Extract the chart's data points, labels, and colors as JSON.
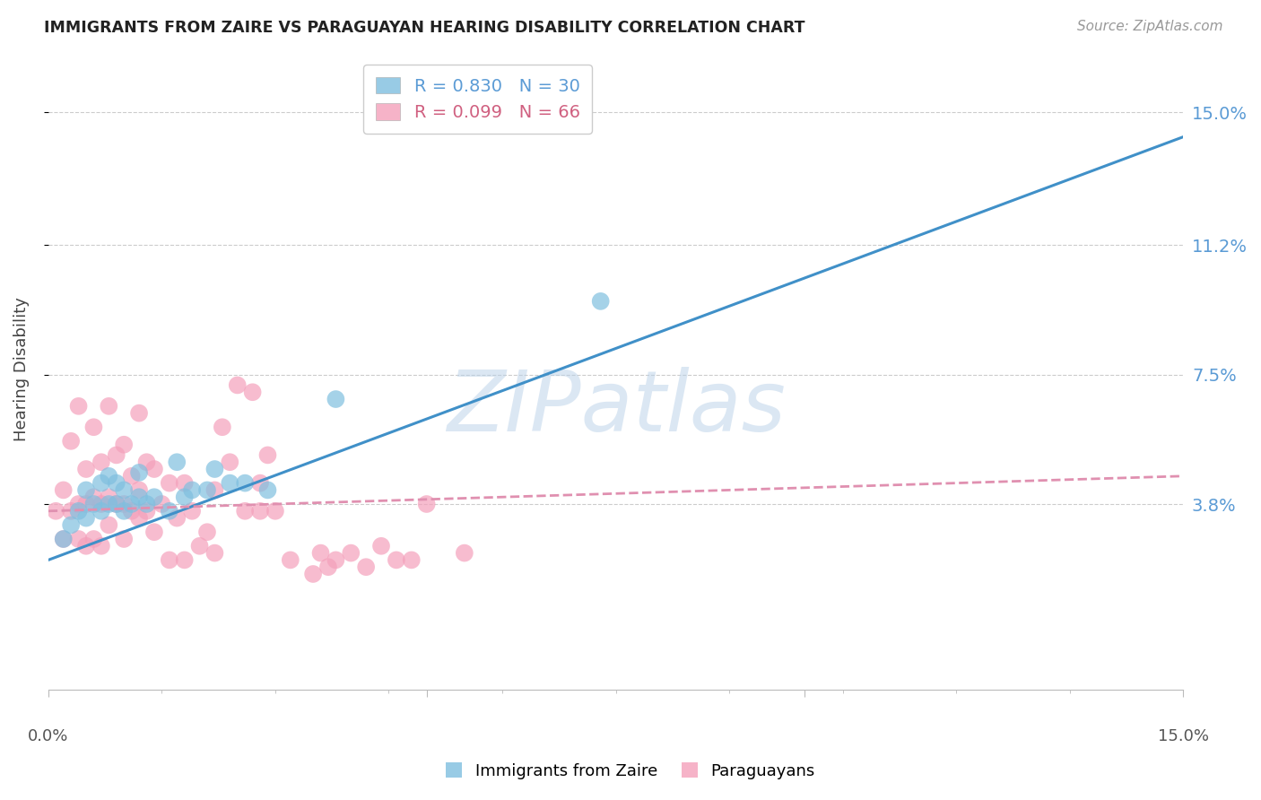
{
  "title": "IMMIGRANTS FROM ZAIRE VS PARAGUAYAN HEARING DISABILITY CORRELATION CHART",
  "source": "Source: ZipAtlas.com",
  "ylabel": "Hearing Disability",
  "ytick_labels": [
    "15.0%",
    "11.2%",
    "7.5%",
    "3.8%"
  ],
  "ytick_values": [
    0.15,
    0.112,
    0.075,
    0.038
  ],
  "xlim": [
    0.0,
    0.15
  ],
  "ylim": [
    -0.015,
    0.168
  ],
  "blue_R": 0.83,
  "blue_N": 30,
  "pink_R": 0.099,
  "pink_N": 66,
  "blue_color": "#7fbfdf",
  "pink_color": "#f4a0bb",
  "blue_line_color": "#4090c8",
  "pink_line_color": "#e090b0",
  "legend_label_blue": "Immigrants from Zaire",
  "legend_label_pink": "Paraguayans",
  "watermark": "ZIPatlas",
  "blue_line_x0": 0.0,
  "blue_line_y0": 0.022,
  "blue_line_x1": 0.15,
  "blue_line_y1": 0.143,
  "pink_line_x0": 0.0,
  "pink_line_y0": 0.036,
  "pink_line_x1": 0.15,
  "pink_line_y1": 0.046,
  "blue_points_x": [
    0.002,
    0.003,
    0.004,
    0.005,
    0.005,
    0.006,
    0.007,
    0.007,
    0.008,
    0.008,
    0.009,
    0.009,
    0.01,
    0.01,
    0.011,
    0.012,
    0.012,
    0.013,
    0.014,
    0.016,
    0.017,
    0.018,
    0.019,
    0.021,
    0.022,
    0.024,
    0.026,
    0.029,
    0.038,
    0.073
  ],
  "blue_points_y": [
    0.028,
    0.032,
    0.036,
    0.034,
    0.042,
    0.038,
    0.036,
    0.044,
    0.038,
    0.046,
    0.038,
    0.044,
    0.036,
    0.042,
    0.038,
    0.04,
    0.047,
    0.038,
    0.04,
    0.036,
    0.05,
    0.04,
    0.042,
    0.042,
    0.048,
    0.044,
    0.044,
    0.042,
    0.068,
    0.096
  ],
  "pink_points_x": [
    0.001,
    0.002,
    0.002,
    0.003,
    0.003,
    0.004,
    0.004,
    0.004,
    0.005,
    0.005,
    0.005,
    0.006,
    0.006,
    0.006,
    0.007,
    0.007,
    0.007,
    0.008,
    0.008,
    0.008,
    0.009,
    0.009,
    0.01,
    0.01,
    0.01,
    0.011,
    0.011,
    0.012,
    0.012,
    0.012,
    0.013,
    0.013,
    0.014,
    0.014,
    0.015,
    0.016,
    0.016,
    0.017,
    0.018,
    0.018,
    0.019,
    0.02,
    0.021,
    0.022,
    0.022,
    0.023,
    0.024,
    0.025,
    0.026,
    0.027,
    0.028,
    0.028,
    0.029,
    0.03,
    0.032,
    0.035,
    0.036,
    0.037,
    0.038,
    0.04,
    0.042,
    0.044,
    0.046,
    0.048,
    0.05,
    0.055
  ],
  "pink_points_y": [
    0.036,
    0.028,
    0.042,
    0.036,
    0.056,
    0.028,
    0.038,
    0.066,
    0.026,
    0.038,
    0.048,
    0.028,
    0.04,
    0.06,
    0.026,
    0.038,
    0.05,
    0.032,
    0.04,
    0.066,
    0.038,
    0.052,
    0.028,
    0.038,
    0.055,
    0.036,
    0.046,
    0.034,
    0.042,
    0.064,
    0.036,
    0.05,
    0.03,
    0.048,
    0.038,
    0.022,
    0.044,
    0.034,
    0.022,
    0.044,
    0.036,
    0.026,
    0.03,
    0.024,
    0.042,
    0.06,
    0.05,
    0.072,
    0.036,
    0.07,
    0.036,
    0.044,
    0.052,
    0.036,
    0.022,
    0.018,
    0.024,
    0.02,
    0.022,
    0.024,
    0.02,
    0.026,
    0.022,
    0.022,
    0.038,
    0.024
  ]
}
